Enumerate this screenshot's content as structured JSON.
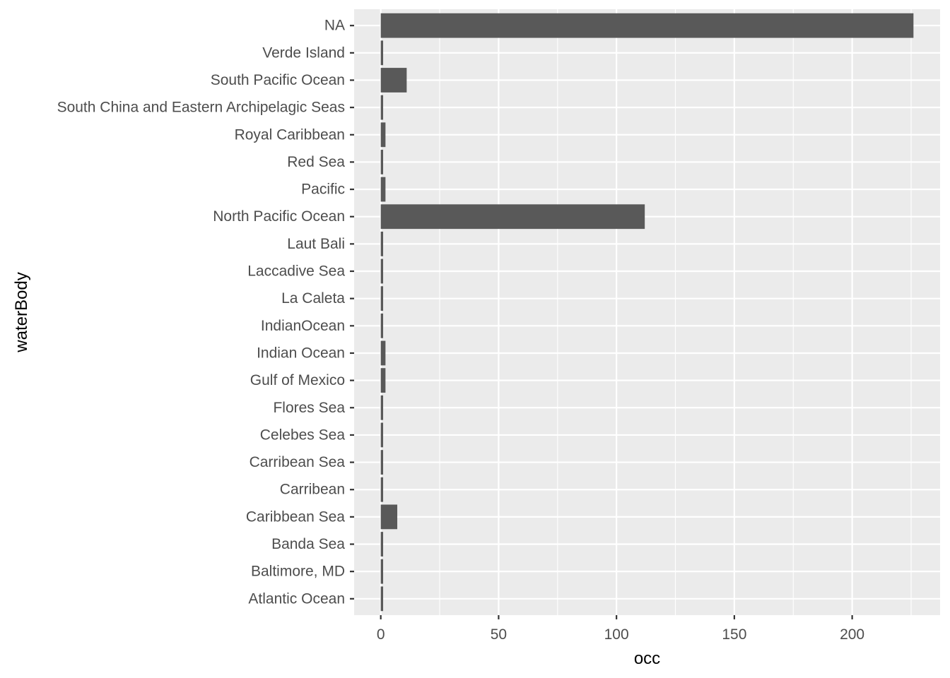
{
  "chart_data": {
    "type": "bar",
    "orientation": "horizontal",
    "xlabel": "occ",
    "ylabel": "waterBody",
    "xlim": [
      -11.3,
      237.3
    ],
    "x_ticks": [
      0,
      50,
      100,
      150,
      200
    ],
    "grid": true,
    "colors": {
      "bar": "#595959",
      "panel": "#ebebeb",
      "grid": "#ffffff"
    },
    "categories": [
      "Atlantic Ocean",
      "Baltimore, MD",
      "Banda Sea",
      "Caribbean Sea",
      "Carribean",
      "Carribean Sea",
      "Celebes Sea",
      "Flores Sea",
      "Gulf of Mexico",
      "Indian Ocean",
      "IndianOcean",
      "La Caleta",
      "Laccadive Sea",
      "Laut Bali",
      "North Pacific Ocean",
      "Pacific",
      "Red Sea",
      "Royal Caribbean",
      "South China and Eastern Archipelagic Seas",
      "South Pacific Ocean",
      "Verde Island",
      "NA"
    ],
    "values": [
      1,
      1,
      1,
      7,
      1,
      1,
      1,
      1,
      2,
      2,
      1,
      1,
      1,
      1,
      112,
      2,
      1,
      2,
      1,
      11,
      1,
      226
    ]
  }
}
